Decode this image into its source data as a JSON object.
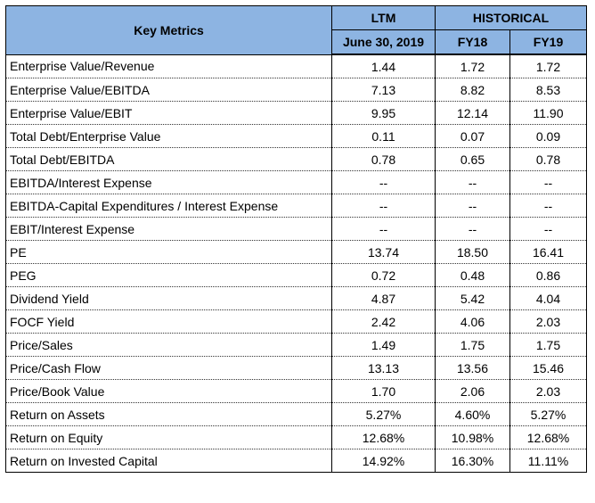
{
  "header": {
    "key_metrics": "Key Metrics",
    "ltm": "LTM",
    "historical": "HISTORICAL",
    "ltm_date": "June 30, 2019",
    "fy18": "FY18",
    "fy19": "FY19"
  },
  "rows": [
    {
      "label": "Enterprise Value/Revenue",
      "ltm": "1.44",
      "fy18": "1.72",
      "fy19": "1.72"
    },
    {
      "label": "Enterprise Value/EBITDA",
      "ltm": "7.13",
      "fy18": "8.82",
      "fy19": "8.53"
    },
    {
      "label": "Enterprise Value/EBIT",
      "ltm": "9.95",
      "fy18": "12.14",
      "fy19": "11.90"
    },
    {
      "label": "Total Debt/Enterprise Value",
      "ltm": "0.11",
      "fy18": "0.07",
      "fy19": "0.09"
    },
    {
      "label": "Total Debt/EBITDA",
      "ltm": "0.78",
      "fy18": "0.65",
      "fy19": "0.78"
    },
    {
      "label": "EBITDA/Interest Expense",
      "ltm": "--",
      "fy18": "--",
      "fy19": "--"
    },
    {
      "label": "EBITDA-Capital Expenditures / Interest Expense",
      "ltm": "--",
      "fy18": "--",
      "fy19": "--"
    },
    {
      "label": "EBIT/Interest Expense",
      "ltm": "--",
      "fy18": "--",
      "fy19": "--"
    },
    {
      "label": "PE",
      "ltm": "13.74",
      "fy18": "18.50",
      "fy19": "16.41"
    },
    {
      "label": "PEG",
      "ltm": "0.72",
      "fy18": "0.48",
      "fy19": "0.86"
    },
    {
      "label": "Dividend Yield",
      "ltm": "4.87",
      "fy18": "5.42",
      "fy19": "4.04"
    },
    {
      "label": "FOCF Yield",
      "ltm": "2.42",
      "fy18": "4.06",
      "fy19": "2.03"
    },
    {
      "label": "Price/Sales",
      "ltm": "1.49",
      "fy18": "1.75",
      "fy19": "1.75"
    },
    {
      "label": "Price/Cash Flow",
      "ltm": "13.13",
      "fy18": "13.56",
      "fy19": "15.46"
    },
    {
      "label": "Price/Book Value",
      "ltm": "1.70",
      "fy18": "2.06",
      "fy19": "2.03"
    },
    {
      "label": "Return on Assets",
      "ltm": "5.27%",
      "fy18": "4.60%",
      "fy19": "5.27%"
    },
    {
      "label": "Return on Equity",
      "ltm": "12.68%",
      "fy18": "10.98%",
      "fy19": "12.68%"
    },
    {
      "label": "Return on Invested Capital",
      "ltm": "14.92%",
      "fy18": "16.30%",
      "fy19": "11.11%"
    }
  ],
  "colors": {
    "header_bg": "#8db4e2"
  }
}
